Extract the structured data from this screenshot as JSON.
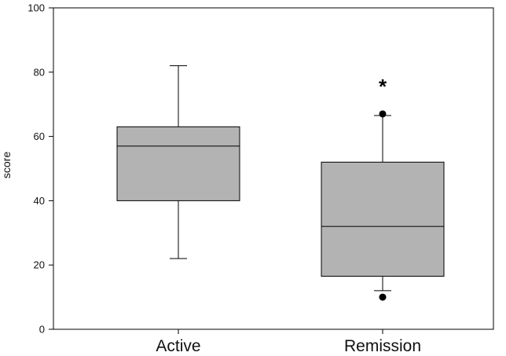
{
  "chart_data": {
    "type": "box",
    "title": "",
    "xlabel": "",
    "ylabel": "score",
    "ylim": [
      0,
      100
    ],
    "yticks": [
      0,
      20,
      40,
      60,
      80,
      100
    ],
    "grid": false,
    "box_color": "#b3b3b3",
    "categories": [
      "Active",
      "Remission"
    ],
    "boxes": [
      {
        "category": "Active",
        "whisker_low": 22,
        "q1": 40,
        "median": 57,
        "q3": 63,
        "whisker_high": 82,
        "outliers": []
      },
      {
        "category": "Remission",
        "whisker_low": 12,
        "q1": 16.5,
        "median": 32,
        "q3": 52,
        "whisker_high": 66.5,
        "outliers": [
          10,
          67
        ]
      }
    ],
    "annotations": [
      {
        "text": "*",
        "category": "Remission",
        "y": 77
      }
    ]
  }
}
